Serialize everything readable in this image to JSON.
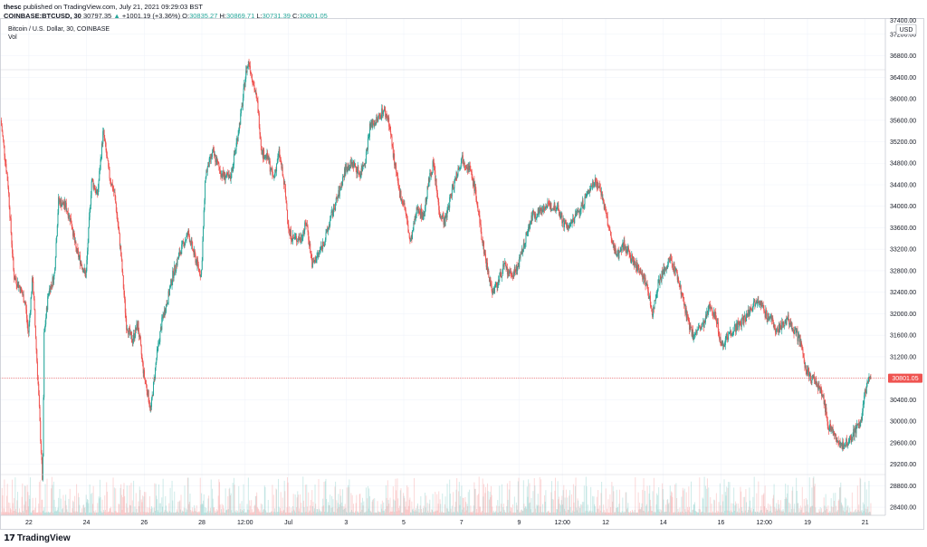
{
  "header": {
    "author": "thesc",
    "published_text": "published on TradingView.com, July 21, 2021 09:29:03 BST",
    "symbol": "COINBASE:BTCUSD, 30",
    "price": "30797.35",
    "change": "+1001.19 (+3.36%)",
    "ohlc": [
      {
        "label": "O:",
        "value": "30835.27"
      },
      {
        "label": "H:",
        "value": "30869.71"
      },
      {
        "label": "L:",
        "value": "30731.39"
      },
      {
        "label": "C:",
        "value": "30801.05"
      }
    ]
  },
  "pane": {
    "title": "Bitcoin / U.S. Dollar, 30, COINBASE",
    "vol_label": "Vol"
  },
  "footer": {
    "brand": "TradingView"
  },
  "colors": {
    "up": "#26a69a",
    "down": "#ef5350",
    "grid": "#f0f3fa",
    "last_price": "#ef5350"
  },
  "chart_data": {
    "type": "candlestick",
    "y_unit": "USD",
    "ylim": [
      28250,
      37500
    ],
    "y_ticks": [
      28400,
      28800,
      29200,
      29600,
      30000,
      30400,
      30800,
      31200,
      31600,
      32000,
      32400,
      32800,
      33200,
      33600,
      34000,
      34400,
      34800,
      35200,
      35600,
      36000,
      36400,
      36800,
      37200
    ],
    "y_tick_labels": [
      "28400.00",
      "28800.00",
      "29200.00",
      "29600.00",
      "30000.00",
      "30400.00",
      "30800.00",
      "31200.00",
      "31600.00",
      "32000.00",
      "32400.00",
      "32800.00",
      "33200.00",
      "33600.00",
      "34000.00",
      "34400.00",
      "34800.00",
      "35200.00",
      "35600.00",
      "36000.00",
      "36400.00",
      "36800.00",
      "37200.00"
    ],
    "y_top_label_partial": "37400.00",
    "last_price": 30801.05,
    "last_price_label": "30801.05",
    "x_range_days": [
      21.0,
      51.7
    ],
    "x_tick_days": [
      22,
      24,
      26,
      28,
      29.5,
      31,
      33,
      35,
      37,
      39,
      40.5,
      42,
      44,
      46,
      47.5,
      49,
      51
    ],
    "x_tick_labels": [
      "22",
      "24",
      "26",
      "28",
      "12:00",
      "Jul",
      "3",
      "5",
      "7",
      "9",
      "12:00",
      "12",
      "14",
      "16",
      "12:00",
      "19",
      "21"
    ],
    "price_path": [
      [
        21.05,
        35600
      ],
      [
        21.3,
        34400
      ],
      [
        21.5,
        32700
      ],
      [
        21.7,
        32500
      ],
      [
        21.9,
        32200
      ],
      [
        22.0,
        31600
      ],
      [
        22.15,
        32700
      ],
      [
        22.35,
        30600
      ],
      [
        22.5,
        28800
      ],
      [
        22.55,
        31600
      ],
      [
        22.7,
        32400
      ],
      [
        22.9,
        32700
      ],
      [
        23.05,
        34100
      ],
      [
        23.3,
        34000
      ],
      [
        23.5,
        33700
      ],
      [
        23.65,
        33200
      ],
      [
        23.8,
        33000
      ],
      [
        24.0,
        32700
      ],
      [
        24.2,
        34500
      ],
      [
        24.4,
        34200
      ],
      [
        24.6,
        35400
      ],
      [
        24.8,
        34600
      ],
      [
        25.0,
        34200
      ],
      [
        25.2,
        33200
      ],
      [
        25.4,
        31800
      ],
      [
        25.6,
        31500
      ],
      [
        25.8,
        31800
      ],
      [
        26.0,
        30900
      ],
      [
        26.15,
        30500
      ],
      [
        26.25,
        30200
      ],
      [
        26.45,
        31200
      ],
      [
        26.65,
        31900
      ],
      [
        26.85,
        32300
      ],
      [
        27.0,
        32700
      ],
      [
        27.3,
        33200
      ],
      [
        27.55,
        33500
      ],
      [
        27.75,
        33100
      ],
      [
        28.0,
        32700
      ],
      [
        28.15,
        34600
      ],
      [
        28.4,
        35000
      ],
      [
        28.7,
        34600
      ],
      [
        29.0,
        34500
      ],
      [
        29.2,
        35100
      ],
      [
        29.4,
        35800
      ],
      [
        29.55,
        36500
      ],
      [
        29.65,
        36700
      ],
      [
        29.8,
        36300
      ],
      [
        29.95,
        35900
      ],
      [
        30.1,
        35000
      ],
      [
        30.3,
        34900
      ],
      [
        30.5,
        34500
      ],
      [
        30.7,
        35000
      ],
      [
        30.9,
        34300
      ],
      [
        31.05,
        33500
      ],
      [
        31.2,
        33400
      ],
      [
        31.45,
        33400
      ],
      [
        31.65,
        33700
      ],
      [
        31.85,
        32900
      ],
      [
        32.05,
        33100
      ],
      [
        32.3,
        33400
      ],
      [
        32.5,
        33800
      ],
      [
        32.75,
        34200
      ],
      [
        33.0,
        34700
      ],
      [
        33.25,
        34800
      ],
      [
        33.5,
        34600
      ],
      [
        33.7,
        34900
      ],
      [
        33.85,
        35500
      ],
      [
        34.1,
        35600
      ],
      [
        34.3,
        35800
      ],
      [
        34.5,
        35600
      ],
      [
        34.7,
        34800
      ],
      [
        34.85,
        34300
      ],
      [
        35.05,
        34000
      ],
      [
        35.25,
        33300
      ],
      [
        35.5,
        34000
      ],
      [
        35.7,
        33800
      ],
      [
        35.9,
        34500
      ],
      [
        36.05,
        34800
      ],
      [
        36.25,
        33900
      ],
      [
        36.45,
        33700
      ],
      [
        36.65,
        34200
      ],
      [
        36.85,
        34600
      ],
      [
        37.05,
        34900
      ],
      [
        37.3,
        34700
      ],
      [
        37.5,
        34300
      ],
      [
        37.7,
        33500
      ],
      [
        37.9,
        32900
      ],
      [
        38.1,
        32400
      ],
      [
        38.3,
        32600
      ],
      [
        38.5,
        32900
      ],
      [
        38.7,
        32700
      ],
      [
        38.9,
        32800
      ],
      [
        39.05,
        33000
      ],
      [
        39.25,
        33400
      ],
      [
        39.45,
        33800
      ],
      [
        39.7,
        33900
      ],
      [
        39.9,
        34000
      ],
      [
        40.15,
        34000
      ],
      [
        40.35,
        34000
      ],
      [
        40.55,
        33700
      ],
      [
        40.75,
        33600
      ],
      [
        40.95,
        33800
      ],
      [
        41.2,
        34000
      ],
      [
        41.45,
        34300
      ],
      [
        41.65,
        34500
      ],
      [
        41.85,
        34300
      ],
      [
        42.05,
        33800
      ],
      [
        42.25,
        33300
      ],
      [
        42.45,
        33100
      ],
      [
        42.65,
        33300
      ],
      [
        42.85,
        33100
      ],
      [
        43.05,
        32900
      ],
      [
        43.25,
        32800
      ],
      [
        43.45,
        32500
      ],
      [
        43.65,
        32000
      ],
      [
        43.85,
        32600
      ],
      [
        44.05,
        32800
      ],
      [
        44.25,
        33000
      ],
      [
        44.45,
        32800
      ],
      [
        44.65,
        32400
      ],
      [
        44.85,
        31900
      ],
      [
        45.05,
        31600
      ],
      [
        45.25,
        31700
      ],
      [
        45.45,
        31800
      ],
      [
        45.65,
        32200
      ],
      [
        45.85,
        31900
      ],
      [
        46.05,
        31400
      ],
      [
        46.25,
        31600
      ],
      [
        46.45,
        31700
      ],
      [
        46.65,
        31800
      ],
      [
        46.85,
        31900
      ],
      [
        47.05,
        32100
      ],
      [
        47.3,
        32300
      ],
      [
        47.55,
        32000
      ],
      [
        47.75,
        31900
      ],
      [
        47.95,
        31700
      ],
      [
        48.15,
        31800
      ],
      [
        48.35,
        31900
      ],
      [
        48.55,
        31700
      ],
      [
        48.75,
        31500
      ],
      [
        48.95,
        31000
      ],
      [
        49.15,
        30800
      ],
      [
        49.35,
        30700
      ],
      [
        49.55,
        30500
      ],
      [
        49.75,
        29900
      ],
      [
        49.95,
        29800
      ],
      [
        50.15,
        29500
      ],
      [
        50.35,
        29600
      ],
      [
        50.55,
        29700
      ],
      [
        50.75,
        29900
      ],
      [
        50.9,
        30000
      ],
      [
        51.0,
        30500
      ],
      [
        51.1,
        30700
      ],
      [
        51.2,
        30801
      ]
    ],
    "volume_note": "volume histogram beneath price, up/down colored"
  }
}
